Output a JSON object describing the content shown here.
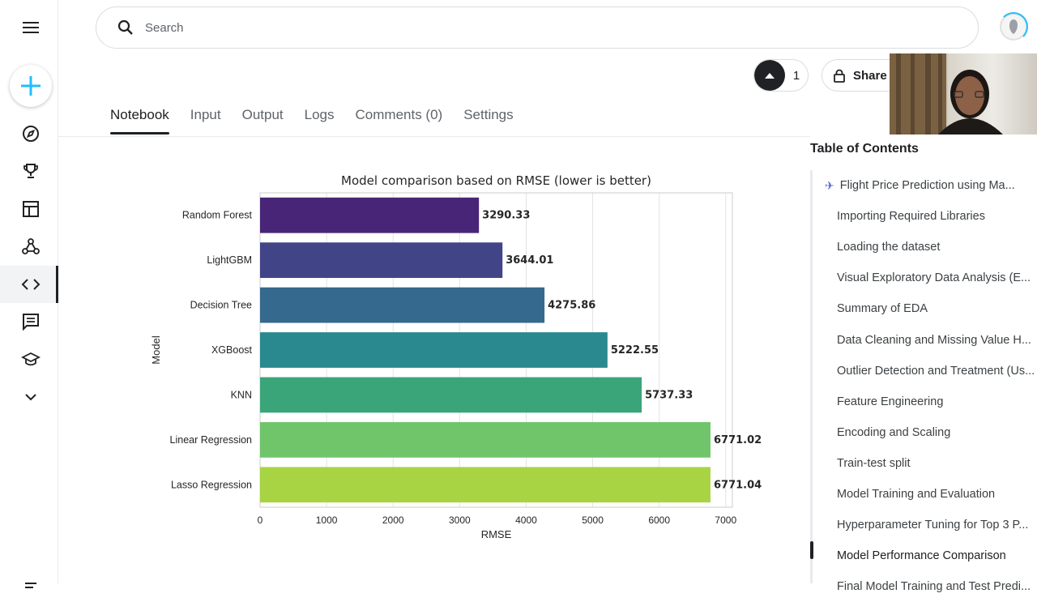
{
  "search": {
    "placeholder": "Search"
  },
  "vote": {
    "count": "1"
  },
  "share": {
    "label": "Share"
  },
  "tabs": [
    {
      "label": "Notebook",
      "active": true
    },
    {
      "label": "Input"
    },
    {
      "label": "Output"
    },
    {
      "label": "Logs"
    },
    {
      "label": "Comments (0)"
    },
    {
      "label": "Settings"
    }
  ],
  "sidebar_icons": [
    "menu-icon",
    "create-icon",
    "compass-icon",
    "trophy-icon",
    "table-icon",
    "models-icon",
    "code-icon",
    "discussion-icon",
    "learn-icon",
    "chevron-down-icon"
  ],
  "chart_data": {
    "type": "bar",
    "orientation": "horizontal",
    "title": "Model comparison based on RMSE (lower is better)",
    "xlabel": "RMSE",
    "ylabel": "Model",
    "categories": [
      "Random Forest",
      "LightGBM",
      "Decision Tree",
      "XGBoost",
      "KNN",
      "Linear Regression",
      "Lasso Regression"
    ],
    "values": [
      3290.33,
      3644.01,
      4275.86,
      5222.55,
      5737.33,
      6771.02,
      6771.04
    ],
    "value_labels": [
      "3290.33",
      "3644.01",
      "4275.86",
      "5222.55",
      "5737.33",
      "6771.02",
      "6771.04"
    ],
    "colors": [
      "#482576",
      "#414487",
      "#35698d",
      "#29898e",
      "#3ba57a",
      "#70c56b",
      "#a8d444"
    ],
    "xlim": [
      0,
      7100
    ],
    "xticks": [
      0,
      1000,
      2000,
      3000,
      4000,
      5000,
      6000,
      7000
    ],
    "grid": true
  },
  "toc": {
    "title": "Table of Contents",
    "items": [
      {
        "label": "Flight Price Prediction using Ma...",
        "icon": "airplane-icon",
        "level": 1
      },
      {
        "label": "Importing Required Libraries",
        "level": 2
      },
      {
        "label": "Loading the dataset",
        "level": 2
      },
      {
        "label": "Visual Exploratory Data Analysis (E...",
        "level": 2
      },
      {
        "label": "Summary of EDA",
        "level": 2
      },
      {
        "label": "Data Cleaning and Missing Value H...",
        "level": 2
      },
      {
        "label": "Outlier Detection and Treatment (Us...",
        "level": 2
      },
      {
        "label": "Feature Engineering",
        "level": 2
      },
      {
        "label": "Encoding and Scaling",
        "level": 2
      },
      {
        "label": "Train-test split",
        "level": 2
      },
      {
        "label": "Model Training and Evaluation",
        "level": 2
      },
      {
        "label": "Hyperparameter Tuning for Top 3 P...",
        "level": 2
      },
      {
        "label": "Model Performance Comparison",
        "level": 2,
        "current": true
      },
      {
        "label": "Final Model Training and Test Predi...",
        "level": 2
      }
    ]
  }
}
